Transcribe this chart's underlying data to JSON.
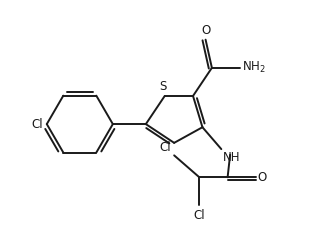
{
  "bg_color": "#ffffff",
  "line_color": "#1a1a1a",
  "line_width": 1.4,
  "font_size": 8.5,
  "fig_width": 3.2,
  "fig_height": 2.41,
  "dpi": 100,
  "xlim": [
    0,
    10
  ],
  "ylim": [
    0,
    7.53
  ]
}
